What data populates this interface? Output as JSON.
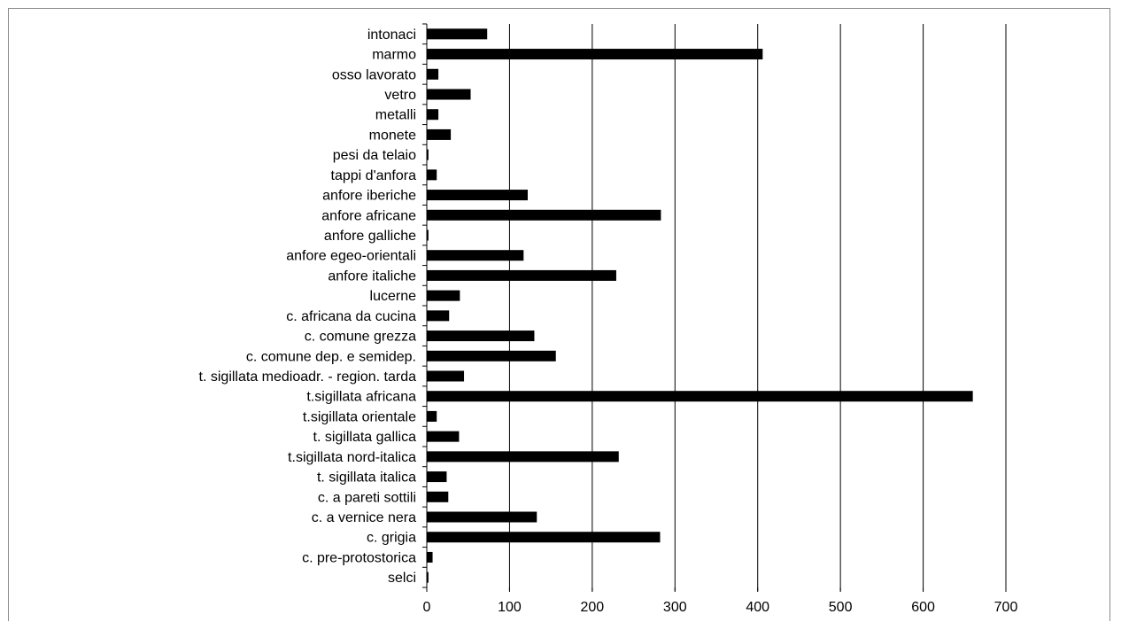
{
  "chart_data": {
    "type": "bar",
    "orientation": "horizontal",
    "title": "",
    "xlabel": "",
    "ylabel": "",
    "categories": [
      "intonaci",
      "marmo",
      "osso lavorato",
      "vetro",
      "metalli",
      "monete",
      "pesi da telaio",
      "tappi d'anfora",
      "anfore iberiche",
      "anfore africane",
      "anfore galliche",
      "anfore egeo-orientali",
      "anfore italiche ",
      "lucerne",
      "c. africana da cucina",
      "c. comune grezza",
      "c. comune dep. e semidep.",
      "t. sigillata medioadr. - region. tarda",
      "t.sigillata africana",
      "t.sigillata orientale",
      "t. sigillata gallica",
      "t.sigillata nord-italica",
      "t. sigillata italica",
      "c. a pareti sottili",
      "c. a vernice nera",
      "c. grigia",
      "c. pre-protostorica",
      "selci"
    ],
    "values": [
      73,
      406,
      14,
      53,
      14,
      29,
      2,
      12,
      122,
      283,
      2,
      117,
      229,
      40,
      27,
      130,
      156,
      45,
      660,
      12,
      39,
      232,
      24,
      26,
      133,
      282,
      7,
      2
    ],
    "xlim": [
      0,
      700
    ],
    "xticks": [
      0,
      100,
      200,
      300,
      400,
      500,
      600,
      700
    ],
    "grid": "vertical",
    "legend": "none",
    "colors": {
      "bar": "#000000",
      "grid": "#000000",
      "axis": "#000000",
      "frame": "#8c8c8c"
    }
  }
}
